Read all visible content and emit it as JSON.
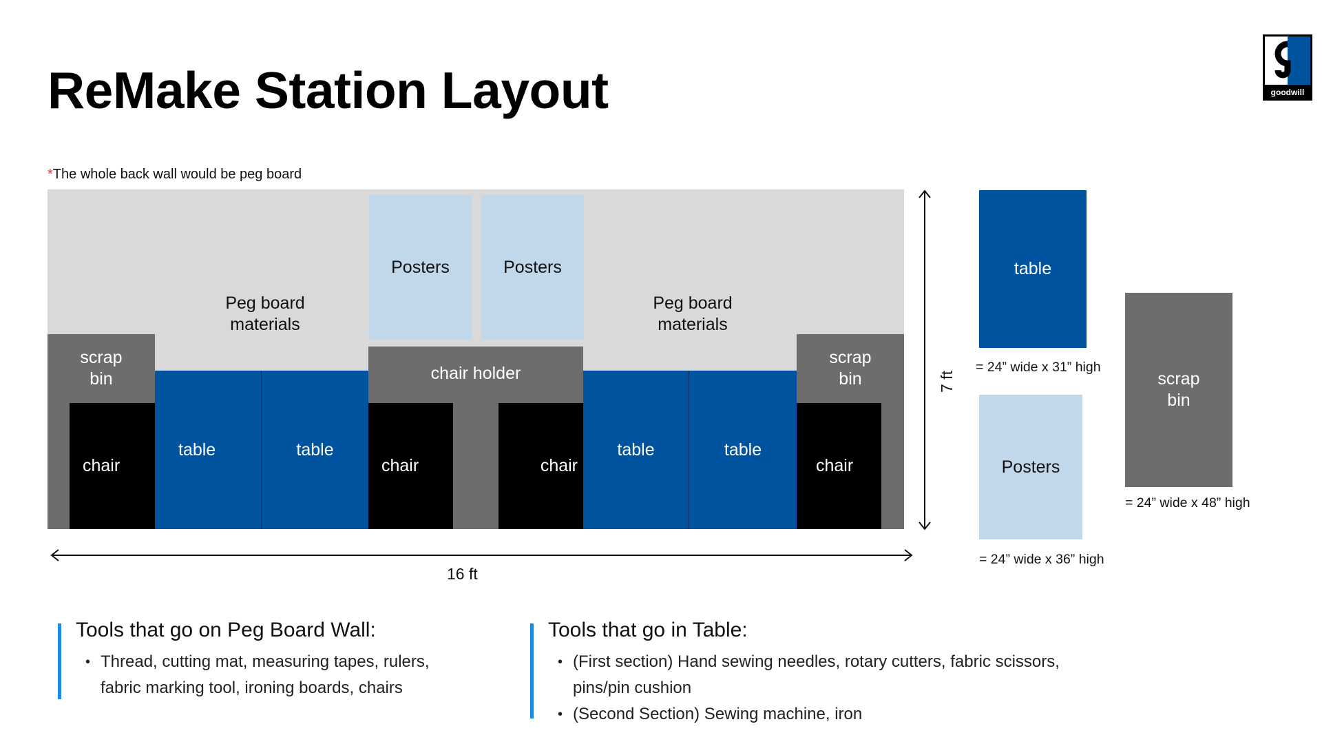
{
  "title": "ReMake Station Layout",
  "note": {
    "star": "*",
    "text": "The whole back wall would be peg board"
  },
  "colors": {
    "wall": "#d9d9d9",
    "table": "#00539f",
    "chair": "#000000",
    "bin": "#6d6d6d",
    "poster": "#c1d7ea",
    "accent_bar": "#1e88e5",
    "star": "#e53935"
  },
  "layout": {
    "posters": [
      "Posters",
      "Posters"
    ],
    "pegboard_labels": [
      "Peg board\nmaterials",
      "Peg board\nmaterials"
    ],
    "chair_holder": "chair holder",
    "scrap_bins": [
      "scrap\nbin",
      "scrap\nbin"
    ],
    "chairs": [
      "chair",
      "chair",
      "chair",
      "chair"
    ],
    "tables": [
      "table",
      "table",
      "table",
      "table"
    ]
  },
  "dimensions": {
    "width": "16 ft",
    "height": "7 ft"
  },
  "legend": {
    "table": {
      "label": "table",
      "size": "= 24” wide x 31” high"
    },
    "posters": {
      "label": "Posters",
      "size": "= 24” wide x 36” high"
    },
    "scrap_bin": {
      "label": "scrap\nbin",
      "size": "= 24” wide x 48” high"
    }
  },
  "tools_peg": {
    "title": "Tools that go on Peg Board Wall:",
    "items": [
      "Thread, cutting mat, measuring tapes, rulers,\nfabric marking tool, ironing boards, chairs"
    ]
  },
  "tools_table": {
    "title": "Tools that go in Table:",
    "items": [
      "(First section) Hand sewing needles, rotary cutters, fabric scissors,\npins/pin cushion",
      "(Second Section) Sewing machine, iron"
    ]
  },
  "logo": {
    "wordmark": "goodwill"
  }
}
